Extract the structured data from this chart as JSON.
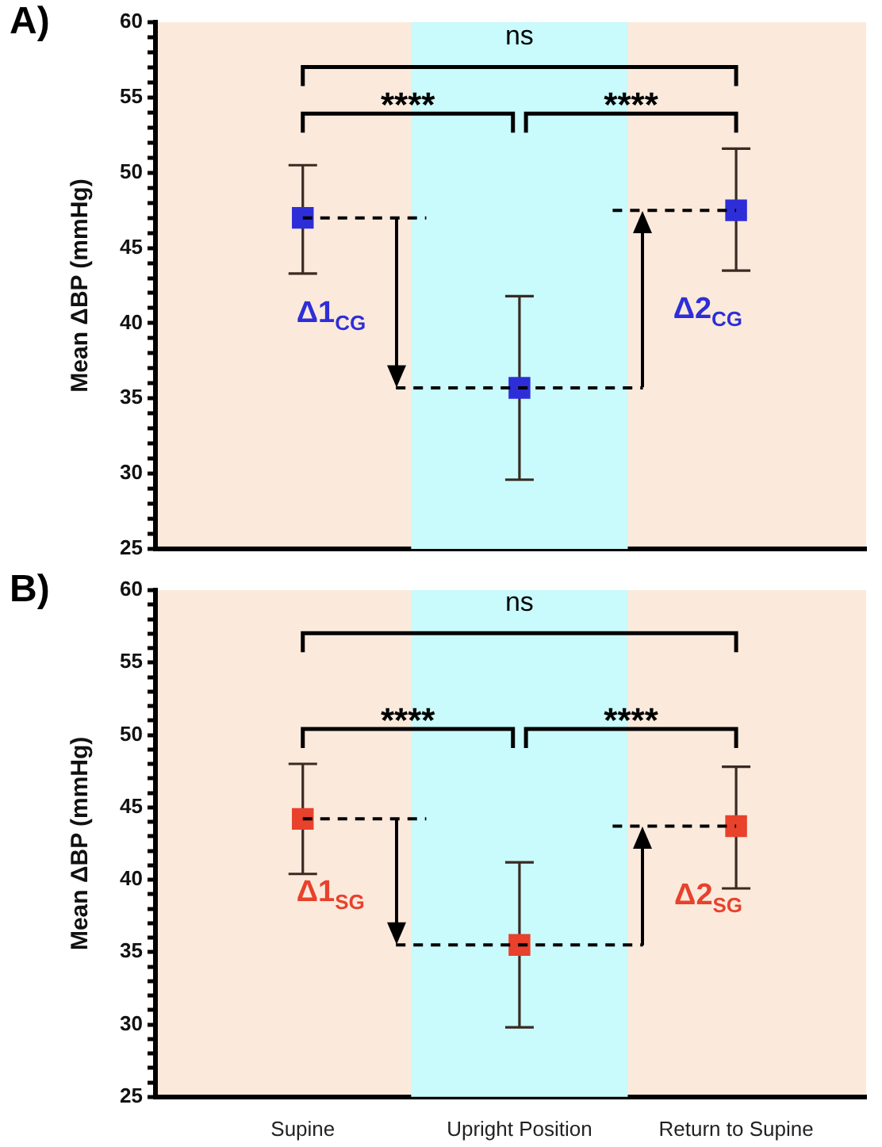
{
  "chart_data": [
    {
      "type": "scatter",
      "title": "A)",
      "ylabel": "Mean ΔBP (mmHg)",
      "categories": [
        "Supine",
        "Upright Position",
        "Return to Supine"
      ],
      "tick_labels": "y",
      "marker": "square",
      "grid": false,
      "legend": false,
      "series": [
        {
          "color": "#2e2ed8",
          "values": [
            47.0,
            35.7,
            47.5
          ],
          "errors": [
            [
              43.3,
              50.5
            ],
            [
              29.6,
              41.8
            ],
            [
              43.5,
              51.6
            ]
          ]
        }
      ],
      "ylim": [
        25,
        60
      ],
      "yticks": [
        25,
        {
          "value": 26,
          "label": null
        },
        {
          "value": 27,
          "label": null
        },
        {
          "value": 28,
          "label": null
        },
        {
          "value": 29,
          "label": null
        },
        30,
        {
          "value": 31,
          "label": null
        },
        {
          "value": 32,
          "label": null
        },
        {
          "value": 33,
          "label": null
        },
        {
          "value": 34,
          "label": null
        },
        35,
        {
          "value": 36,
          "label": null
        },
        {
          "value": 37,
          "label": null
        },
        {
          "value": 38,
          "label": null
        },
        {
          "value": 39,
          "label": null
        },
        40,
        {
          "value": 41,
          "label": null
        },
        {
          "value": 42,
          "label": null
        },
        {
          "value": 43,
          "label": null
        },
        {
          "value": 44,
          "label": null
        },
        45,
        {
          "value": 46,
          "label": null
        },
        {
          "value": 47,
          "label": null
        },
        {
          "value": 48,
          "label": null
        },
        {
          "value": 49,
          "label": null
        },
        50,
        {
          "value": 51,
          "label": null
        },
        {
          "value": 52,
          "label": null
        },
        {
          "value": 53,
          "label": null
        },
        {
          "value": 54,
          "label": null
        },
        55,
        {
          "value": 56,
          "label": null
        },
        {
          "value": 57,
          "label": null
        },
        {
          "value": 58,
          "label": null
        },
        {
          "value": 59,
          "label": null
        },
        60
      ],
      "bands": [
        {
          "axis": "x",
          "from": "Upright Position",
          "to": "Upright Position",
          "color": "#c9fafc"
        }
      ],
      "ref_lines": [
        {
          "axis": "y",
          "value": 47.0,
          "line_style": "dashed",
          "color": "#000000"
        },
        {
          "axis": "y",
          "value": 35.7,
          "line_style": "dashed",
          "color": "#000000"
        },
        {
          "axis": "y",
          "value": 47.5,
          "line_style": "dashed",
          "color": "#000000"
        }
      ],
      "annotations": [
        "ns",
        "****",
        "****",
        "Δ1$_{CG}$",
        "Δ2$_{CG}$"
      ]
    },
    {
      "type": "scatter",
      "title": "B)",
      "ylabel": "Mean ΔBP (mmHg)",
      "categories": [
        "Supine",
        "Upright Position",
        "Return to Supine"
      ],
      "marker": "square",
      "grid": false,
      "legend": false,
      "series": [
        {
          "color": "#e8412c",
          "values": [
            44.2,
            35.5,
            43.7
          ],
          "errors": [
            [
              40.4,
              48.0
            ],
            [
              29.8,
              41.2
            ],
            [
              39.4,
              47.8
            ]
          ]
        }
      ],
      "ylim": [
        25,
        60
      ],
      "yticks": [
        25,
        {
          "value": 26,
          "label": null
        },
        {
          "value": 27,
          "label": null
        },
        {
          "value": 28,
          "label": null
        },
        {
          "value": 29,
          "label": null
        },
        30,
        {
          "value": 31,
          "label": null
        },
        {
          "value": 32,
          "label": null
        },
        {
          "value": 33,
          "label": null
        },
        {
          "value": 34,
          "label": null
        },
        35,
        {
          "value": 36,
          "label": null
        },
        {
          "value": 37,
          "label": null
        },
        {
          "value": 38,
          "label": null
        },
        {
          "value": 39,
          "label": null
        },
        40,
        {
          "value": 41,
          "label": null
        },
        {
          "value": 42,
          "label": null
        },
        {
          "value": 43,
          "label": null
        },
        {
          "value": 44,
          "label": null
        },
        45,
        {
          "value": 46,
          "label": null
        },
        {
          "value": 47,
          "label": null
        },
        {
          "value": 48,
          "label": null
        },
        {
          "value": 49,
          "label": null
        },
        50,
        {
          "value": 51,
          "label": null
        },
        {
          "value": 52,
          "label": null
        },
        {
          "value": 53,
          "label": null
        },
        {
          "value": 54,
          "label": null
        },
        55,
        {
          "value": 56,
          "label": null
        },
        {
          "value": 57,
          "label": null
        },
        {
          "value": 58,
          "label": null
        },
        {
          "value": 59,
          "label": null
        },
        60
      ],
      "bands": [
        {
          "axis": "x",
          "from": "Upright Position",
          "to": "Upright Position",
          "color": "#c9fafc"
        }
      ],
      "ref_lines": [
        {
          "axis": "y",
          "value": 44.2,
          "line_style": "dashed",
          "color": "#000000"
        },
        {
          "axis": "y",
          "value": 35.5,
          "line_style": "dashed",
          "color": "#000000"
        },
        {
          "axis": "y",
          "value": 43.7,
          "line_style": "dashed",
          "color": "#000000"
        }
      ],
      "annotations": [
        "ns",
        "****",
        "****",
        "Δ1$_{SG}$",
        "Δ2$_{SG}$"
      ]
    }
  ]
}
